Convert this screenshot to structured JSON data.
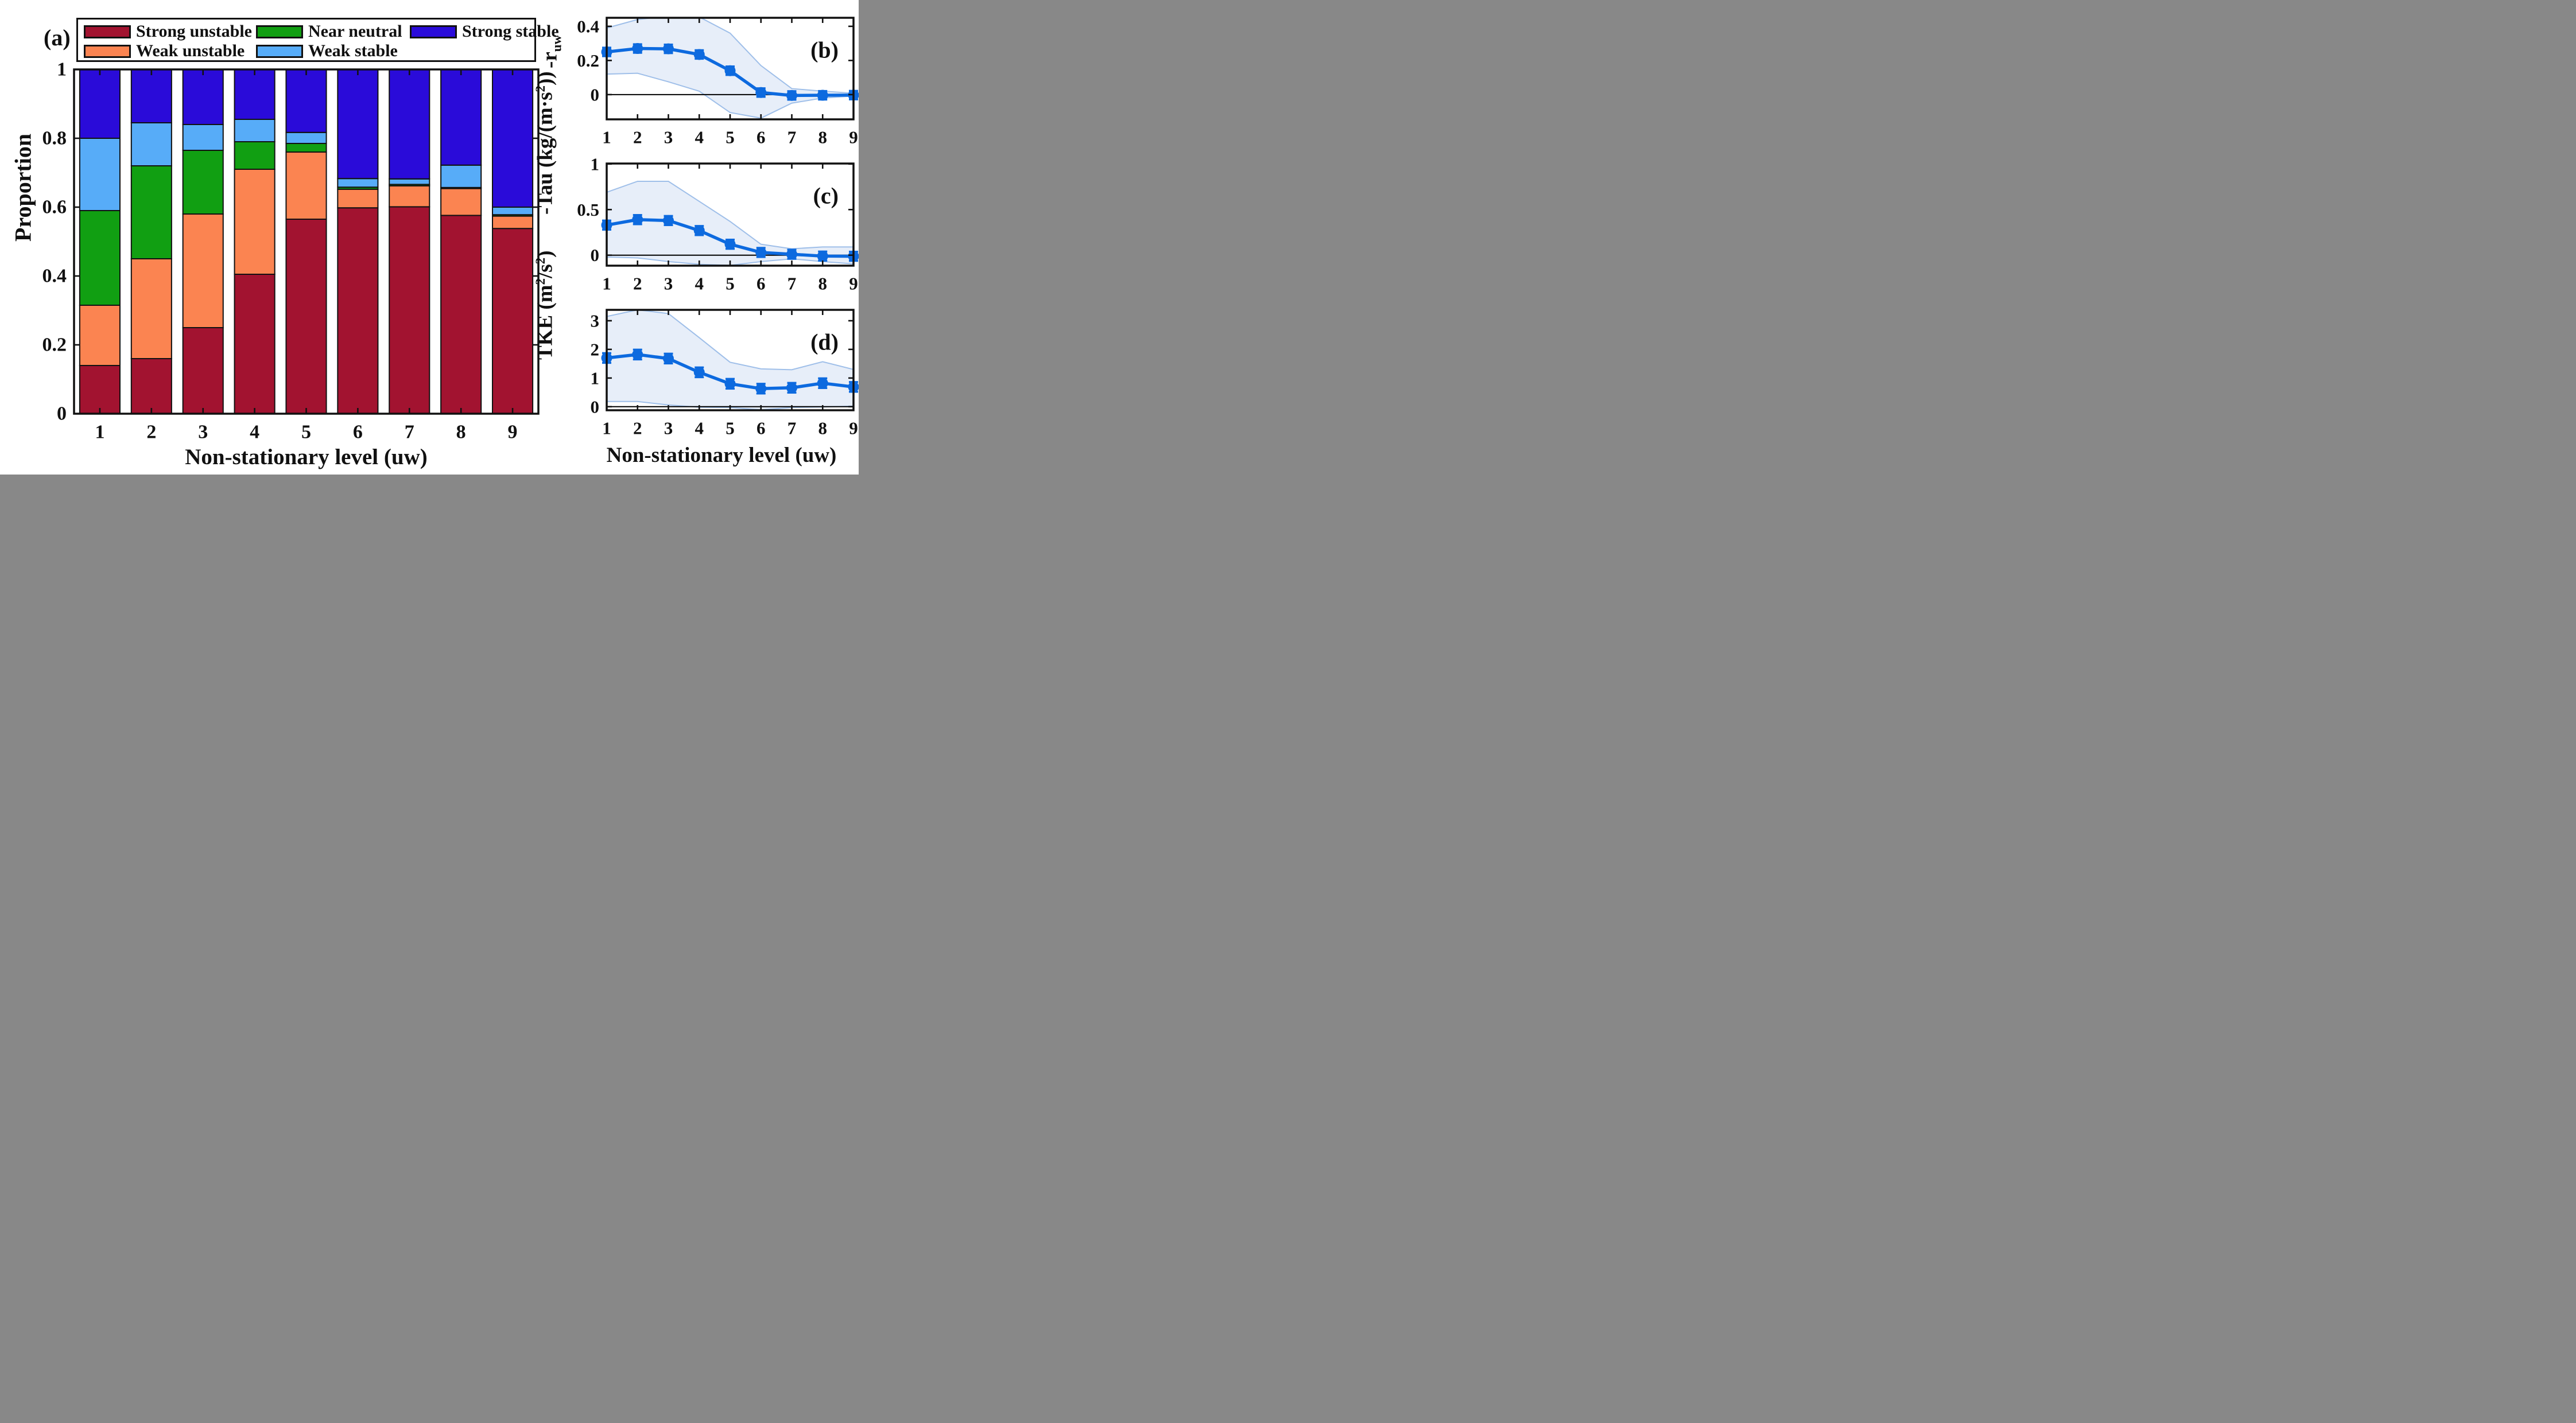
{
  "style": {
    "axis_color": "#111111",
    "line_color": "#0D6ADF",
    "band_fill": "#E7EEF9",
    "band_edge": "#9FBFE9",
    "background": "#ffffff"
  },
  "chart_data": [
    {
      "id": "a",
      "type": "bar",
      "stacked": true,
      "panel_label": "(a)",
      "ylabel": "Proportion",
      "xlabel": "Non-stationary level (uw)",
      "categories": [
        "1",
        "2",
        "3",
        "4",
        "5",
        "6",
        "7",
        "8",
        "9"
      ],
      "ylim": [
        0,
        1
      ],
      "yticks": {
        "values": [
          0,
          0.2,
          0.4,
          0.6,
          0.8,
          1
        ],
        "labels": [
          "0",
          "0.2",
          "0.4",
          "0.6",
          "0.8",
          "1"
        ]
      },
      "bar_width_frac": 0.78,
      "legend_position": "top",
      "series": [
        {
          "name": "Strong unstable",
          "color": "#A21330",
          "values": [
            0.14,
            0.16,
            0.25,
            0.405,
            0.565,
            0.598,
            0.601,
            0.576,
            0.538
          ]
        },
        {
          "name": "Weak unstable",
          "color": "#FB8451",
          "values": [
            0.175,
            0.29,
            0.33,
            0.305,
            0.195,
            0.054,
            0.061,
            0.078,
            0.036
          ]
        },
        {
          "name": "Near neutral",
          "color": "#119F12",
          "values": [
            0.275,
            0.27,
            0.185,
            0.08,
            0.025,
            0.006,
            0.004,
            0.003,
            0.004
          ]
        },
        {
          "name": "Weak stable",
          "color": "#57ACF8",
          "values": [
            0.21,
            0.125,
            0.075,
            0.065,
            0.032,
            0.025,
            0.016,
            0.065,
            0.022
          ]
        },
        {
          "name": "Strong stable",
          "color": "#2A0BD9",
          "values": [
            0.2,
            0.155,
            0.16,
            0.145,
            0.183,
            0.317,
            0.318,
            0.278,
            0.4
          ]
        }
      ]
    },
    {
      "id": "b",
      "type": "line",
      "panel_label": "(b)",
      "ylabel_parts": [
        {
          "text": "-r",
          "style": "normal"
        },
        {
          "text": "uw",
          "style": "sub"
        }
      ],
      "x": [
        1,
        2,
        3,
        4,
        5,
        6,
        7,
        8,
        9
      ],
      "xtick_labels": [
        "1",
        "2",
        "3",
        "4",
        "5",
        "6",
        "7",
        "8",
        "9"
      ],
      "ylim": [
        -0.145,
        0.45
      ],
      "yticks": {
        "values": [
          0,
          0.2,
          0.4
        ],
        "labels": [
          "0",
          "0.2",
          "0.4"
        ]
      },
      "zero_line": true,
      "series": {
        "name": "mean",
        "values": [
          0.25,
          0.27,
          0.268,
          0.235,
          0.14,
          0.012,
          -0.005,
          -0.004,
          -0.003
        ],
        "err": 0.025,
        "band_upper": [
          0.39,
          0.44,
          0.46,
          0.455,
          0.36,
          0.17,
          0.035,
          0.02,
          0.008
        ],
        "band_lower": [
          0.12,
          0.125,
          0.075,
          0.02,
          -0.105,
          -0.138,
          -0.05,
          -0.02,
          -0.008
        ]
      }
    },
    {
      "id": "c",
      "type": "line",
      "panel_label": "(c)",
      "ylabel_parts": [
        {
          "text": "-Tau (kg/(m·s",
          "style": "normal"
        },
        {
          "text": "2",
          "style": "sup"
        },
        {
          "text": "))",
          "style": "normal"
        }
      ],
      "x": [
        1,
        2,
        3,
        4,
        5,
        6,
        7,
        8,
        9
      ],
      "xtick_labels": [
        "1",
        "2",
        "3",
        "4",
        "5",
        "6",
        "7",
        "8",
        "9"
      ],
      "ylim": [
        -0.115,
        1.005
      ],
      "yticks": {
        "values": [
          0,
          0.5,
          1
        ],
        "labels": [
          "0",
          "0.5",
          "1"
        ]
      },
      "zero_line": true,
      "series": {
        "name": "mean",
        "values": [
          0.33,
          0.39,
          0.38,
          0.27,
          0.12,
          0.03,
          0.01,
          -0.01,
          -0.012
        ],
        "err": 0.05,
        "band_upper": [
          0.69,
          0.81,
          0.81,
          0.59,
          0.37,
          0.12,
          0.07,
          0.09,
          0.09
        ],
        "band_lower": [
          -0.02,
          -0.03,
          -0.07,
          -0.1,
          -0.112,
          -0.07,
          -0.04,
          -0.07,
          -0.095
        ]
      }
    },
    {
      "id": "d",
      "type": "line",
      "panel_label": "(d)",
      "ylabel_parts": [
        {
          "text": "TKE (m",
          "style": "normal"
        },
        {
          "text": "2",
          "style": "sup"
        },
        {
          "text": "/s",
          "style": "normal"
        },
        {
          "text": "2",
          "style": "sup"
        },
        {
          "text": ")",
          "style": "normal"
        }
      ],
      "xlabel": "Non-stationary level (uw)",
      "x": [
        1,
        2,
        3,
        4,
        5,
        6,
        7,
        8,
        9
      ],
      "xtick_labels": [
        "1",
        "2",
        "3",
        "4",
        "5",
        "6",
        "7",
        "8",
        "9"
      ],
      "ylim": [
        -0.125,
        3.38
      ],
      "yticks": {
        "values": [
          0,
          1,
          2,
          3
        ],
        "labels": [
          "0",
          "1",
          "2",
          "3"
        ]
      },
      "zero_line": true,
      "series": {
        "name": "mean",
        "values": [
          1.7,
          1.82,
          1.68,
          1.2,
          0.8,
          0.63,
          0.66,
          0.82,
          0.69
        ],
        "err": 0.17,
        "band_upper": [
          3.15,
          3.38,
          3.25,
          2.41,
          1.55,
          1.32,
          1.29,
          1.57,
          1.3
        ],
        "band_lower": [
          0.18,
          0.18,
          0.06,
          -0.02,
          -0.03,
          -0.11,
          -0.03,
          -0.01,
          0.02
        ]
      }
    }
  ]
}
